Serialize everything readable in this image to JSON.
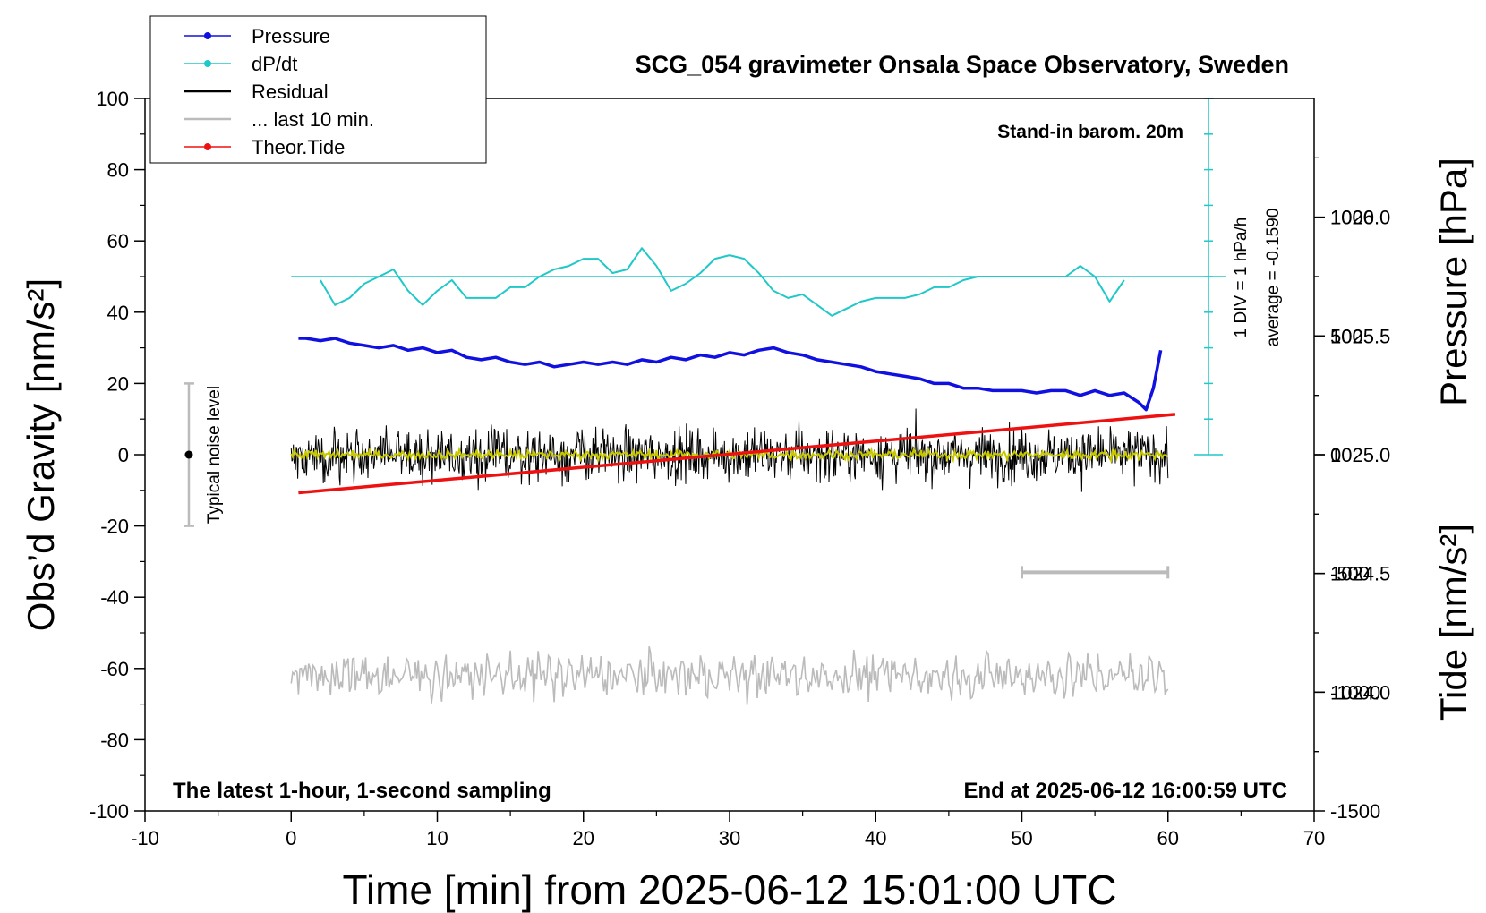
{
  "chart_data": {
    "type": "line",
    "title": "SCG_054 gravimeter Onsala Space Observatory, Sweden",
    "xlabel": "Time [min] from 2025-06-12 15:01:00 UTC",
    "ylabel_left": "Obs’d Gravity [nm/s²]",
    "ylabel_right_top": "Pressure [hPa]",
    "ylabel_right_bottom": "Tide [nm/s²]",
    "xlim": [
      -10,
      70
    ],
    "ylim": [
      -100,
      100
    ],
    "pressure_ylim": [
      1023.5,
      1026.5
    ],
    "tide_ylim": [
      -1500,
      1500
    ],
    "x_ticks": [
      "-10",
      "0",
      "10",
      "20",
      "30",
      "40",
      "50",
      "60",
      "70"
    ],
    "y_ticks": [
      "-100",
      "-80",
      "-60",
      "-40",
      "-20",
      "0",
      "20",
      "40",
      "60",
      "80",
      "100"
    ],
    "pressure_ticks": [
      "1024.0",
      "1024.5",
      "1025.0",
      "1025.5",
      "1026.0"
    ],
    "tide_ticks": [
      "-1500",
      "-1000",
      "-500",
      "0",
      "500",
      "1000"
    ],
    "grid": false,
    "legend_position": "top-left",
    "legend": [
      {
        "label": "Pressure",
        "color": "#1010e0",
        "marker": true
      },
      {
        "label": "dP/dt",
        "color": "#20c8c8",
        "marker": true
      },
      {
        "label": "Residual",
        "color": "#000000",
        "marker": false
      },
      {
        "label": "... last 10 min.",
        "color": "#bbbbbb",
        "marker": false
      },
      {
        "label": "Theor.Tide",
        "color": "#ee1111",
        "marker": true
      }
    ],
    "annotations": {
      "barometer": "Stand-in barom. 20m",
      "scale": "1 DIV = 1 hPa/h",
      "average": "average = -0.1590",
      "noise": "Typical noise level",
      "sampling": "The latest 1-hour, 1-second sampling",
      "end": "End at 2025-06-12 16:00:59 UTC"
    },
    "noise_bar": {
      "x": -7,
      "center": 0,
      "range": [
        -20,
        20
      ]
    },
    "last_window_bar": {
      "x_range": [
        50,
        60
      ],
      "y": -33
    },
    "dpdt_baseline": 50,
    "series": [
      {
        "name": "Pressure",
        "unit": "hPa",
        "x": [
          0.5,
          1,
          2,
          3,
          4,
          5,
          6,
          7,
          8,
          9,
          10,
          11,
          12,
          13,
          14,
          15,
          16,
          17,
          18,
          19,
          20,
          21,
          22,
          23,
          24,
          25,
          26,
          27,
          28,
          29,
          30,
          31,
          32,
          33,
          34,
          35,
          36,
          37,
          38,
          39,
          40,
          41,
          42,
          43,
          44,
          45,
          46,
          47,
          48,
          49,
          50,
          51,
          52,
          53,
          54,
          55,
          56,
          57,
          58,
          58.5,
          59,
          59.5
        ],
        "values": [
          1025.49,
          1025.49,
          1025.48,
          1025.49,
          1025.47,
          1025.46,
          1025.45,
          1025.46,
          1025.44,
          1025.45,
          1025.43,
          1025.44,
          1025.41,
          1025.4,
          1025.41,
          1025.39,
          1025.38,
          1025.39,
          1025.37,
          1025.38,
          1025.39,
          1025.38,
          1025.39,
          1025.38,
          1025.4,
          1025.39,
          1025.41,
          1025.4,
          1025.42,
          1025.41,
          1025.43,
          1025.42,
          1025.44,
          1025.45,
          1025.43,
          1025.42,
          1025.4,
          1025.39,
          1025.38,
          1025.37,
          1025.35,
          1025.34,
          1025.33,
          1025.32,
          1025.3,
          1025.3,
          1025.28,
          1025.28,
          1025.27,
          1025.27,
          1025.27,
          1025.26,
          1025.27,
          1025.27,
          1025.25,
          1025.27,
          1025.25,
          1025.26,
          1025.22,
          1025.19,
          1025.28,
          1025.44
        ]
      },
      {
        "name": "dP/dt",
        "unit": "nm/s²",
        "x": [
          2,
          3,
          4,
          5,
          6,
          7,
          8,
          9,
          10,
          11,
          12,
          13,
          14,
          15,
          16,
          17,
          18,
          19,
          20,
          21,
          22,
          23,
          24,
          25,
          26,
          27,
          28,
          29,
          30,
          31,
          32,
          33,
          34,
          35,
          36,
          37,
          38,
          39,
          40,
          41,
          42,
          43,
          44,
          45,
          46,
          47,
          48,
          49,
          50,
          51,
          52,
          53,
          54,
          55,
          56,
          57
        ],
        "values": [
          49,
          42,
          44,
          48,
          50,
          52,
          46,
          42,
          46,
          49,
          44,
          44,
          44,
          47,
          47,
          50,
          52,
          53,
          55,
          55,
          51,
          52,
          58,
          53,
          46,
          48,
          51,
          55,
          56,
          55,
          51,
          46,
          44,
          45,
          42,
          39,
          41,
          43,
          44,
          44,
          44,
          45,
          47,
          47,
          49,
          50,
          50,
          50,
          50,
          50,
          50,
          50,
          53,
          50,
          43,
          49
        ]
      },
      {
        "name": "Theor.Tide",
        "unit": "nm/s²",
        "x": [
          0.5,
          60.5
        ],
        "values": [
          -160,
          170
        ]
      }
    ]
  }
}
